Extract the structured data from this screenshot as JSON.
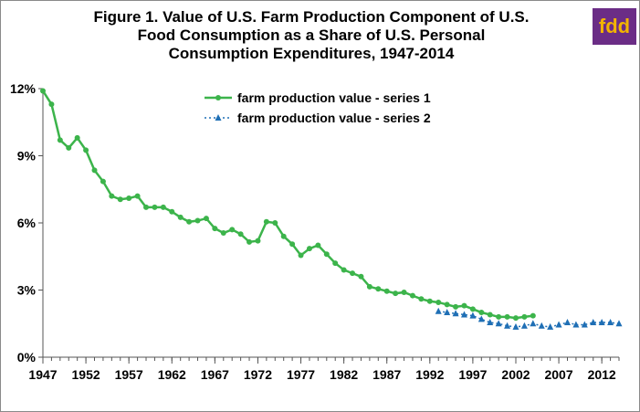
{
  "chart_data": {
    "type": "line",
    "title_lines": [
      "Figure 1. Value of U.S. Farm Production Component of U.S.",
      "Food Consumption as a Share of U.S. Personal",
      "Consumption Expenditures, 1947-2014"
    ],
    "logo_text": "fdd",
    "xlim": [
      1947,
      2014
    ],
    "ylim": [
      0,
      12
    ],
    "x_ticks": [
      1947,
      1952,
      1957,
      1962,
      1967,
      1972,
      1977,
      1982,
      1987,
      1992,
      1997,
      2002,
      2007,
      2012
    ],
    "y_ticks": [
      {
        "value": 0,
        "label": "0%"
      },
      {
        "value": 3,
        "label": "3%"
      },
      {
        "value": 6,
        "label": "6%"
      },
      {
        "value": 9,
        "label": "9%"
      },
      {
        "value": 12,
        "label": "12%"
      }
    ],
    "legend_position": "top-center",
    "series": [
      {
        "name": "farm production value - series 1",
        "color": "#3cb44b",
        "style": "solid",
        "marker": "circle",
        "x": [
          1947,
          1948,
          1949,
          1950,
          1951,
          1952,
          1953,
          1954,
          1955,
          1956,
          1957,
          1958,
          1959,
          1960,
          1961,
          1962,
          1963,
          1964,
          1965,
          1966,
          1967,
          1968,
          1969,
          1970,
          1971,
          1972,
          1973,
          1974,
          1975,
          1976,
          1977,
          1978,
          1979,
          1980,
          1981,
          1982,
          1983,
          1984,
          1985,
          1986,
          1987,
          1988,
          1989,
          1990,
          1991,
          1992,
          1993,
          1994,
          1995,
          1996,
          1997,
          1998,
          1999,
          2000,
          2001,
          2002,
          2003,
          2004
        ],
        "y": [
          11.9,
          11.3,
          9.7,
          9.35,
          9.8,
          9.25,
          8.35,
          7.85,
          7.2,
          7.05,
          7.1,
          7.2,
          6.7,
          6.7,
          6.7,
          6.5,
          6.25,
          6.05,
          6.1,
          6.2,
          5.75,
          5.55,
          5.7,
          5.5,
          5.15,
          5.2,
          6.05,
          6.0,
          5.4,
          5.05,
          4.55,
          4.85,
          5.0,
          4.6,
          4.2,
          3.9,
          3.75,
          3.6,
          3.15,
          3.05,
          2.95,
          2.85,
          2.9,
          2.75,
          2.6,
          2.5,
          2.45,
          2.35,
          2.25,
          2.3,
          2.15,
          2.0,
          1.9,
          1.8,
          1.8,
          1.75,
          1.8,
          1.85
        ]
      },
      {
        "name": "farm production value - series 2",
        "color": "#1f6fb5",
        "style": "dotted",
        "marker": "triangle",
        "x": [
          1993,
          1994,
          1995,
          1996,
          1997,
          1998,
          1999,
          2000,
          2001,
          2002,
          2003,
          2004,
          2005,
          2006,
          2007,
          2008,
          2009,
          2010,
          2011,
          2012,
          2013,
          2014
        ],
        "y": [
          2.05,
          2.0,
          1.95,
          1.9,
          1.85,
          1.7,
          1.55,
          1.5,
          1.4,
          1.35,
          1.4,
          1.5,
          1.4,
          1.35,
          1.45,
          1.55,
          1.45,
          1.45,
          1.55,
          1.55,
          1.55,
          1.5
        ]
      }
    ]
  }
}
